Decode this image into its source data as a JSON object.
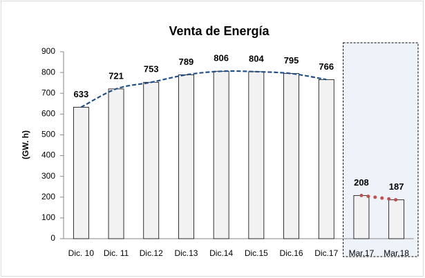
{
  "chart_data": {
    "type": "bar",
    "title": "Venta de Energía",
    "y_label": "(GW. h)",
    "categories": [
      "Dic. 10",
      "Dic. 11",
      "Dic.12",
      "Dic.13",
      "Dic.14",
      "Dic.15",
      "Dic.16",
      "Dic.17",
      "Mar.17",
      "Mar.18"
    ],
    "color": "#f2f2f2",
    "series": [
      {
        "color": "#1f4e8c",
        "values": [
          633,
          721,
          753,
          789,
          806,
          804,
          795,
          766,
          null,
          null
        ]
      },
      {
        "color": "#c0504d",
        "values": [
          null,
          null,
          null,
          null,
          null,
          null,
          null,
          null,
          208,
          187
        ]
      }
    ],
    "ylim": [
      0,
      900
    ],
    "yticks": [
      0,
      100,
      200,
      300,
      400,
      500,
      600,
      700,
      800,
      900
    ]
  }
}
